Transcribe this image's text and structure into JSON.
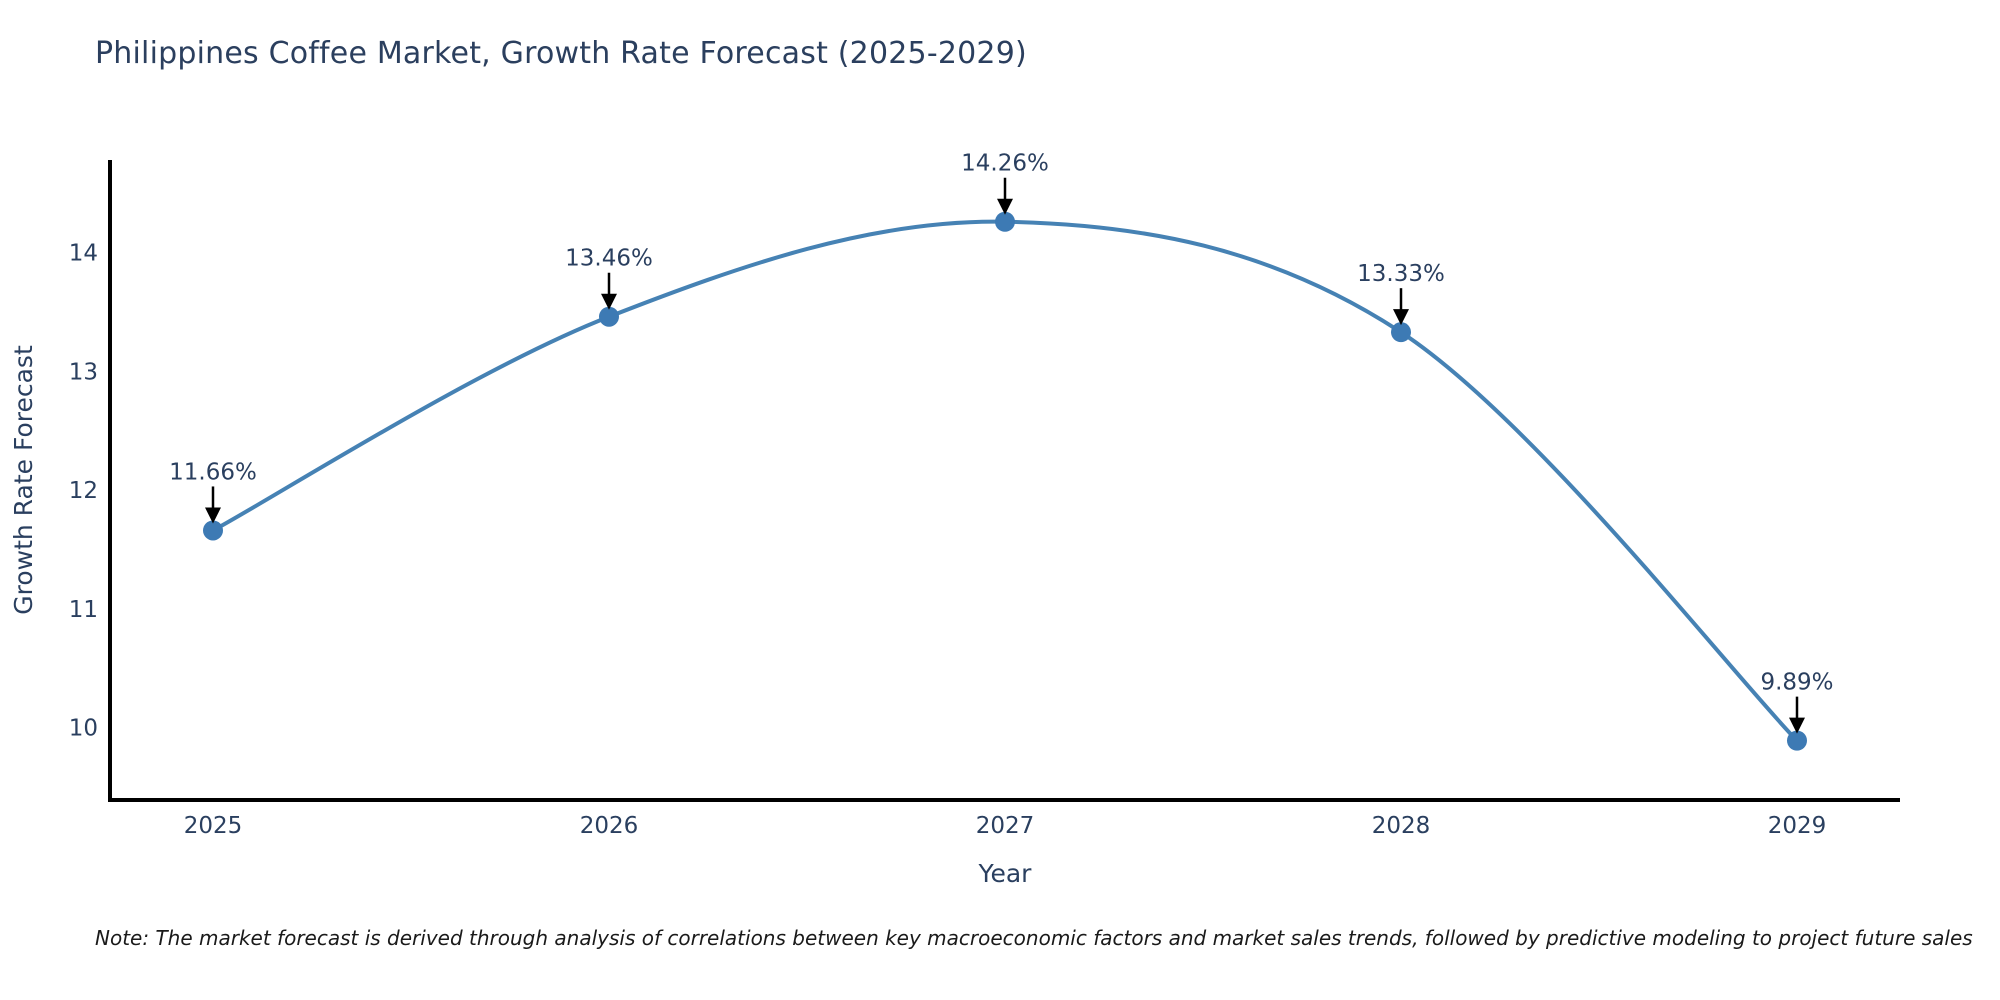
{
  "title": {
    "text": "Philippines Coffee Market, Growth Rate Forecast (2025-2029)"
  },
  "note": {
    "text": "Note: The market forecast is derived through analysis of correlations between key macroeconomic factors and market sales trends, followed by predictive modeling to project future sales"
  },
  "chart_data": {
    "type": "line",
    "line_shape": "spline",
    "title": "Philippines Coffee Market, Growth Rate Forecast (2025-2029)",
    "categories": [
      "2025",
      "2026",
      "2027",
      "2028",
      "2029"
    ],
    "values": [
      11.66,
      13.46,
      14.26,
      13.33,
      9.89
    ],
    "point_labels": [
      "11.66%",
      "13.46%",
      "14.26%",
      "13.33%",
      "9.89%"
    ],
    "xlabel": "Year",
    "ylabel": "Growth Rate Forecast",
    "yticks": [
      10,
      11,
      12,
      13,
      14
    ],
    "ylim": [
      9.39,
      14.78
    ],
    "grid": false,
    "legend": "none",
    "annotations": "value labels with down arrows above each data point",
    "colors": {
      "line": "#4682b4",
      "marker": "#3d7ab4",
      "axis": "#000000",
      "tick_text": "#2a3f5f",
      "axis_title_text": "#2a3f5f",
      "annotation_text": "#2a3f5f",
      "arrow": "#000000",
      "title": "#2b3f5e",
      "note_text": "#1a1a1a",
      "background": "#ffffff"
    }
  }
}
